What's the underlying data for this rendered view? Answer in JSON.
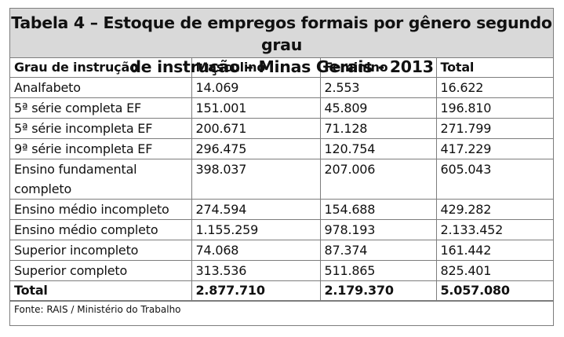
{
  "title_line1": "Tabela 4 – Estoque de empregos formais por gênero segundo grau",
  "title_line2": "de instrução – Minas Gerais - 2013",
  "headers": [
    "Grau de instrução",
    "Masculino",
    "Feminino",
    "Total"
  ],
  "rows": [
    [
      "Analfabeto",
      "14.069",
      "2.553",
      "16.622"
    ],
    [
      "5ª série completa EF",
      "151.001",
      "45.809",
      "196.810"
    ],
    [
      "5ª série incompleta EF",
      "200.671",
      "71.128",
      "271.799"
    ],
    [
      "9ª série incompleta EF",
      "296.475",
      "120.754",
      "417.229"
    ],
    [
      "Ensino fundamental completo",
      "398.037",
      "207.006",
      "605.043"
    ],
    [
      "Ensino médio incompleto",
      "274.594",
      "154.688",
      "429.282"
    ],
    [
      "Ensino médio completo",
      "1.155.259",
      "978.193",
      "2.133.452"
    ],
    [
      "Superior incompleto",
      "74.068",
      "87.374",
      "161.442"
    ],
    [
      "Superior completo",
      "313.536",
      "511.865",
      "825.401"
    ]
  ],
  "total_row": [
    "Total",
    "2.877.710",
    "2.179.370",
    "5.057.080"
  ],
  "source": "Fonte: RAIS / Ministério do Trabalho"
}
